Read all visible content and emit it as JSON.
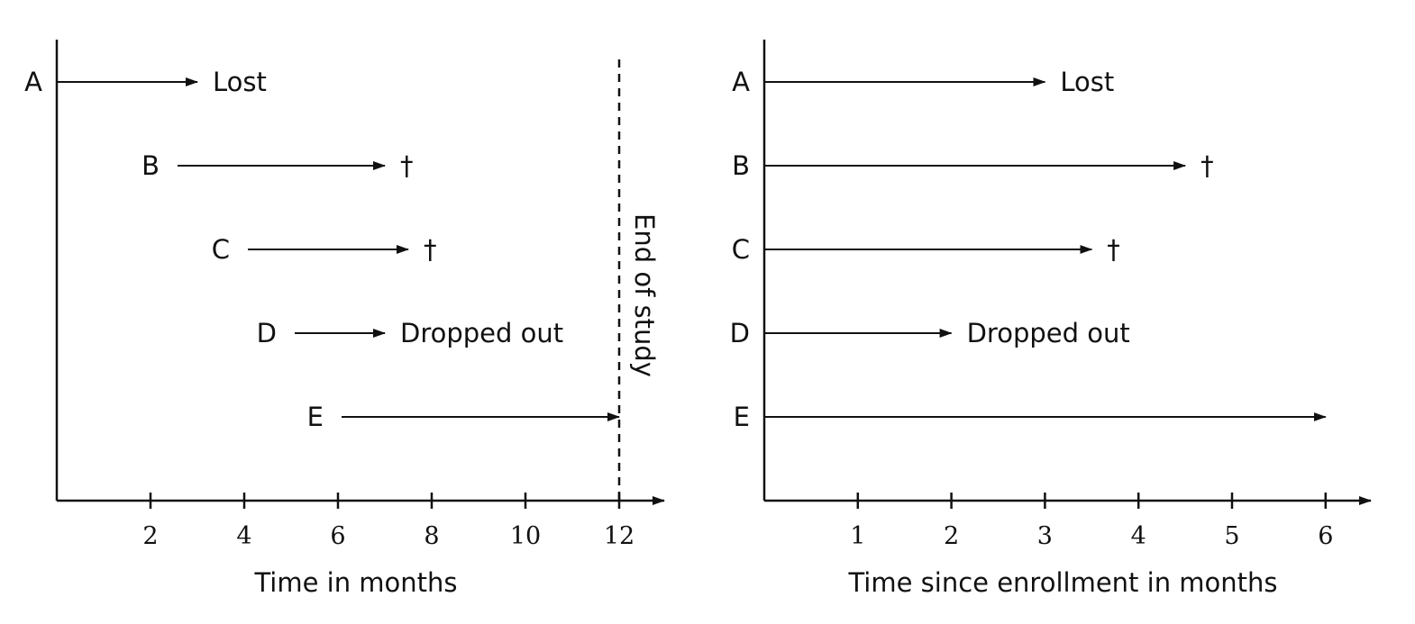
{
  "chart_data": [
    {
      "type": "timeline",
      "xlabel": "Time in months",
      "xticks": [
        2,
        4,
        6,
        8,
        10,
        12
      ],
      "xlim": [
        0,
        13
      ],
      "reference_line": {
        "x": 12,
        "label": "End of study",
        "style": "dashed"
      },
      "subjects": [
        {
          "id": "A",
          "start": 0,
          "end": 3,
          "outcome": "Lost"
        },
        {
          "id": "B",
          "start": 2.5,
          "end": 7,
          "outcome": "†"
        },
        {
          "id": "C",
          "start": 4,
          "end": 7.5,
          "outcome": "†"
        },
        {
          "id": "D",
          "start": 5,
          "end": 7,
          "outcome": "Dropped out"
        },
        {
          "id": "E",
          "start": 6,
          "end": 12,
          "outcome": ""
        }
      ]
    },
    {
      "type": "timeline",
      "xlabel": "Time since enrollment in months",
      "xticks": [
        1,
        2,
        3,
        4,
        5,
        6
      ],
      "xlim": [
        0,
        6.5
      ],
      "subjects": [
        {
          "id": "A",
          "start": 0,
          "end": 3,
          "outcome": "Lost"
        },
        {
          "id": "B",
          "start": 0,
          "end": 4.5,
          "outcome": "†"
        },
        {
          "id": "C",
          "start": 0,
          "end": 3.5,
          "outcome": "†"
        },
        {
          "id": "D",
          "start": 0,
          "end": 2,
          "outcome": "Dropped out"
        },
        {
          "id": "E",
          "start": 0,
          "end": 6,
          "outcome": ""
        }
      ]
    }
  ],
  "colors": {
    "ink": "#111111",
    "background": "#ffffff"
  }
}
